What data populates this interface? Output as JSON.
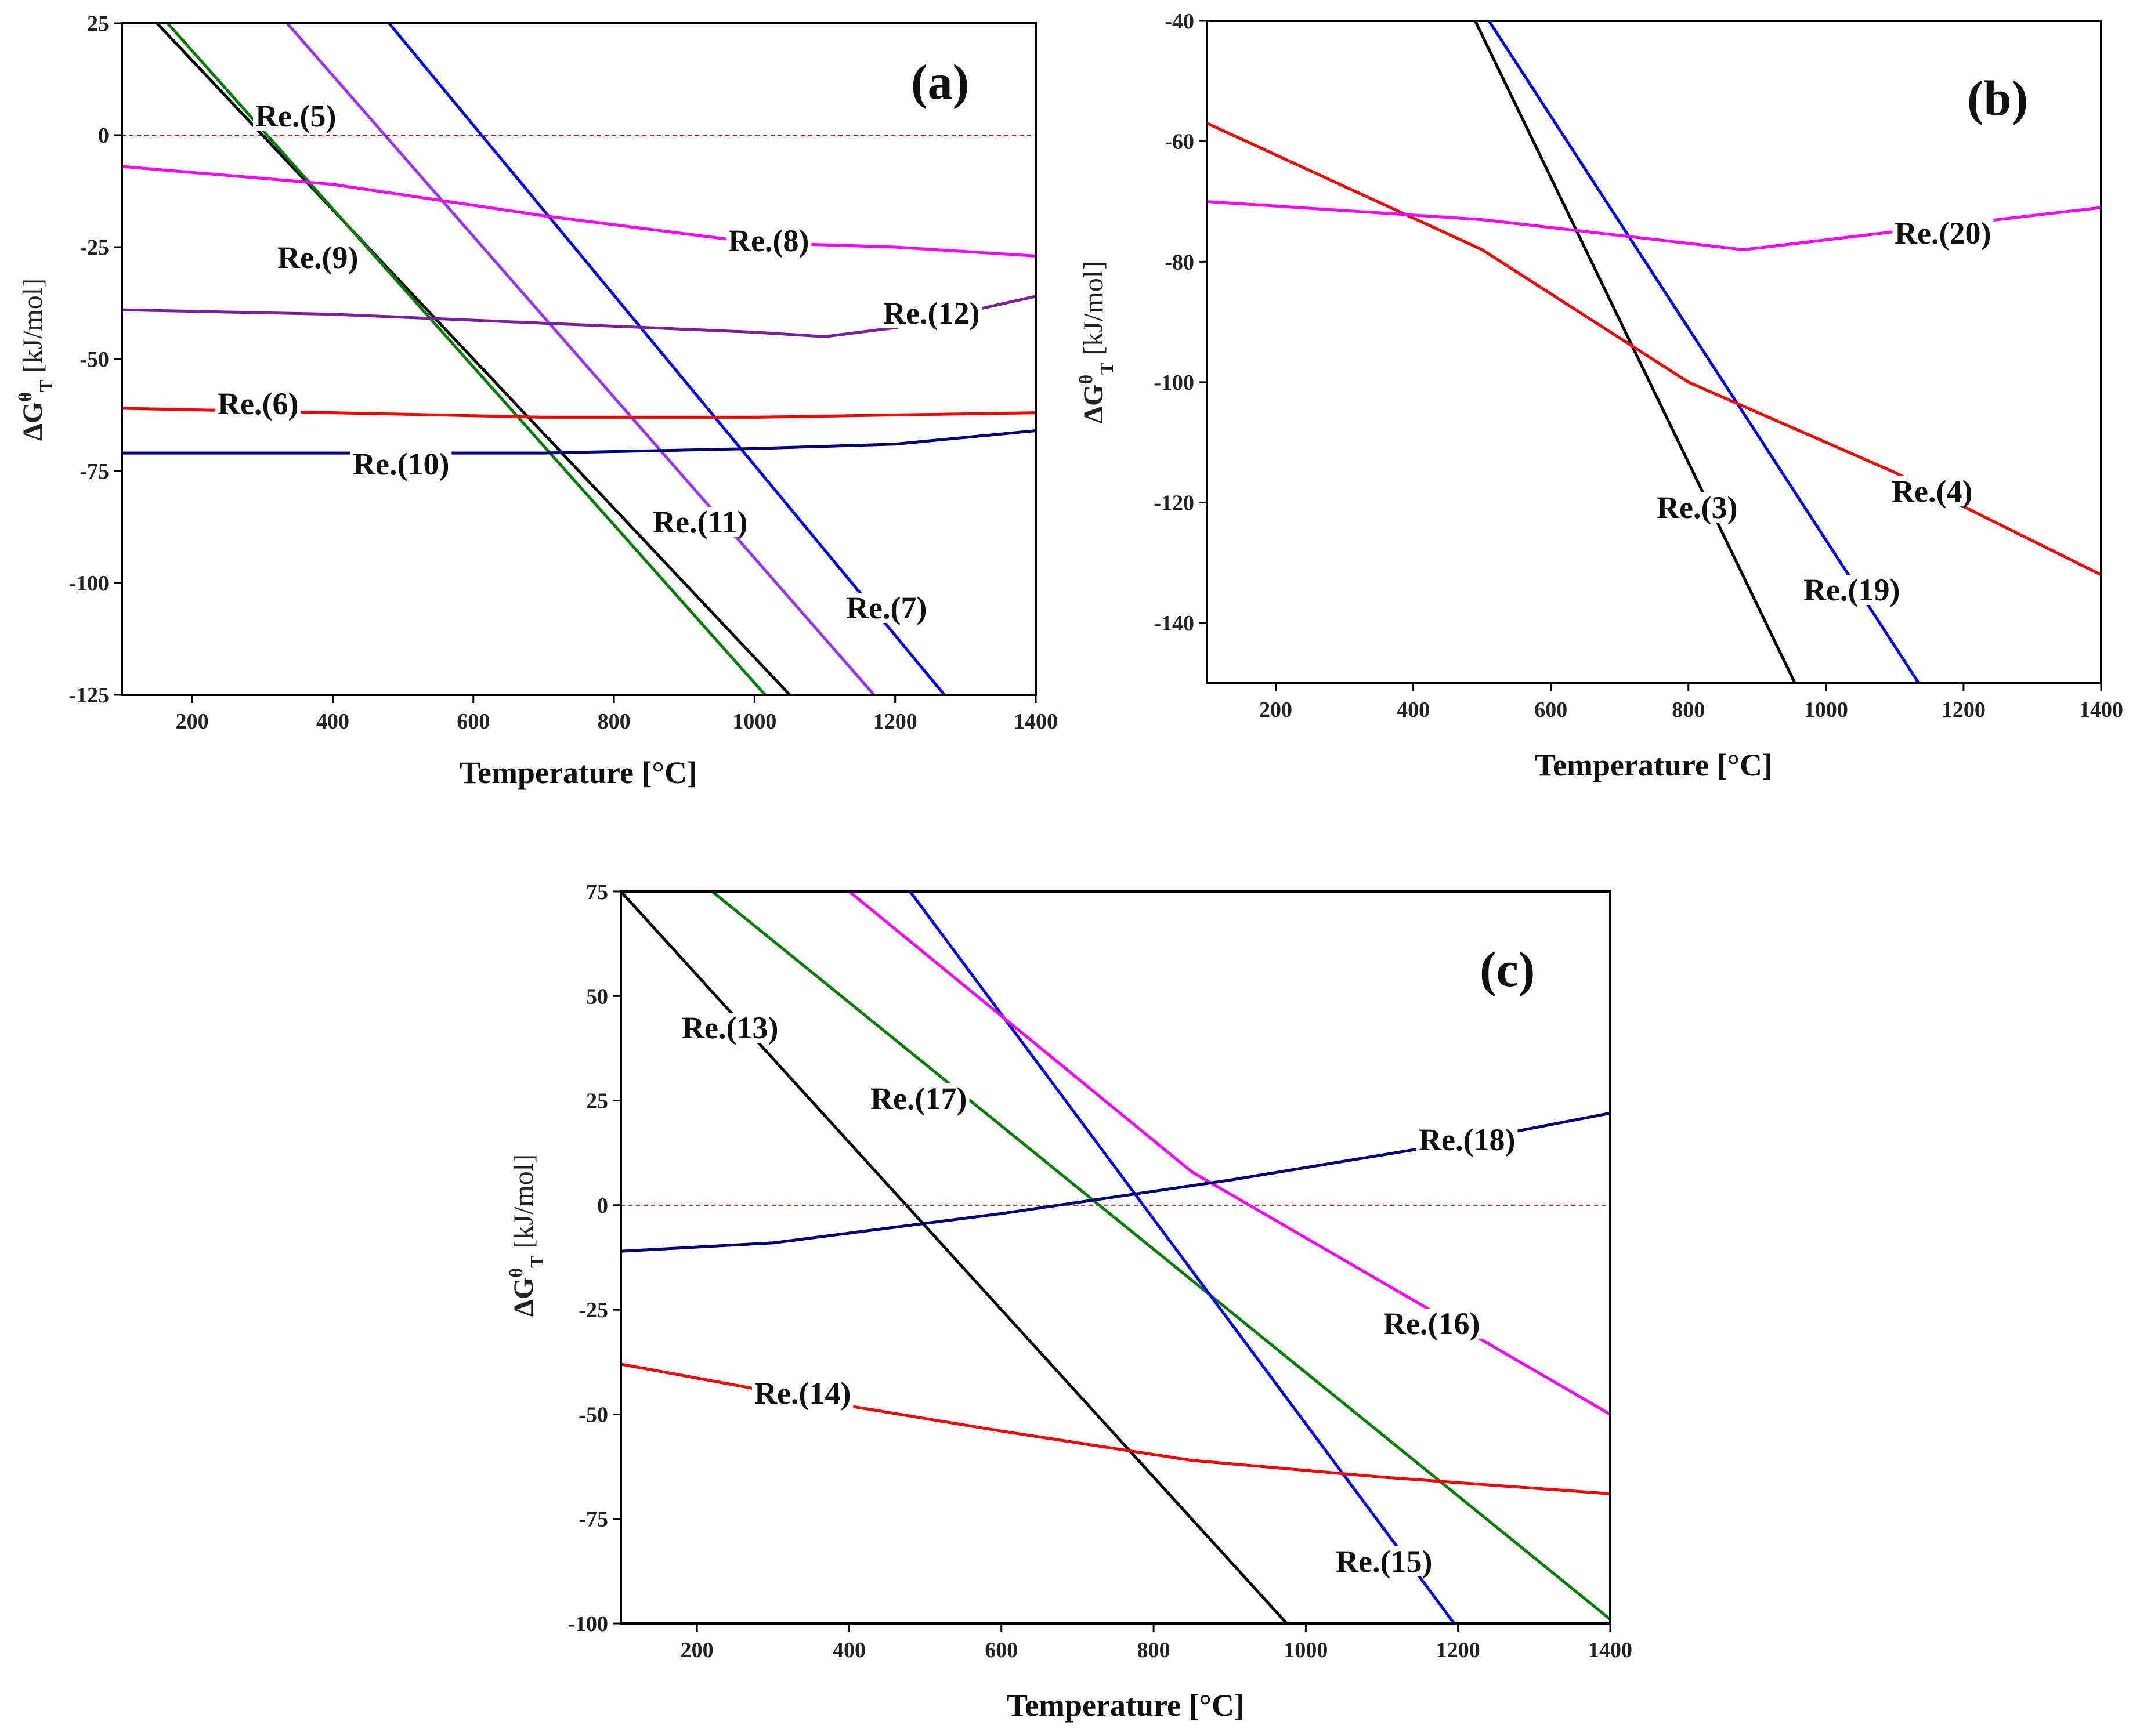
{
  "chart_data": [
    {
      "type": "line",
      "panel": "(a)",
      "xlabel": "Temperature [°C]",
      "ylabel": "ΔG_T^θ [kJ/mol]",
      "ylabel_main": "ΔG",
      "ylabel_sup": "θ",
      "ylabel_sub": "T",
      "ylabel_unit": "[kJ/mol]",
      "xlim": [
        100,
        1400
      ],
      "ylim": [
        -125,
        25
      ],
      "xticks": [
        200,
        400,
        600,
        800,
        1000,
        1200,
        1400
      ],
      "yticks": [
        25,
        0,
        -25,
        -50,
        -75,
        -100,
        -125
      ],
      "zero_line": true,
      "series": [
        {
          "name": "Re.(5)",
          "color": "#000000",
          "x": [
            150,
            1050
          ],
          "y": [
            25,
            -125
          ]
        },
        {
          "name": "Re.(9)",
          "color": "#008000",
          "x": [
            165,
            1015
          ],
          "y": [
            25,
            -125
          ]
        },
        {
          "name": "Re.(11)",
          "color": "#9b30ff",
          "x": [
            335,
            1170
          ],
          "y": [
            25,
            -125
          ]
        },
        {
          "name": "Re.(7)",
          "color": "#0000ff",
          "x": [
            480,
            1270
          ],
          "y": [
            25,
            -125
          ]
        },
        {
          "name": "Re.(8)",
          "color": "#ff00ff",
          "x": [
            100,
            400,
            700,
            1000,
            1200,
            1400
          ],
          "y": [
            -7,
            -11,
            -18,
            -24,
            -25,
            -27
          ]
        },
        {
          "name": "Re.(12)",
          "color": "#7b1fa2",
          "x": [
            100,
            400,
            700,
            1000,
            1100,
            1200,
            1400
          ],
          "y": [
            -39,
            -40,
            -42,
            -44,
            -45,
            -43,
            -36
          ]
        },
        {
          "name": "Re.(6)",
          "color": "#ff0000",
          "x": [
            100,
            400,
            700,
            1000,
            1400
          ],
          "y": [
            -61,
            -62,
            -63,
            -63,
            -62
          ]
        },
        {
          "name": "Re.(10)",
          "color": "#000080",
          "x": [
            100,
            400,
            700,
            1000,
            1200,
            1400
          ],
          "y": [
            -71,
            -71,
            -71,
            -70,
            -69,
            -66
          ]
        }
      ],
      "labels": [
        "(a)",
        "Re.(5)",
        "Re.(9)",
        "Re.(8)",
        "Re.(12)",
        "Re.(6)",
        "Re.(10)",
        "Re.(11)",
        "Re.(7)"
      ]
    },
    {
      "type": "line",
      "panel": "(b)",
      "xlabel": "Temperature [°C]",
      "ylabel": "ΔG_T^θ [kJ/mol]",
      "ylabel_main": "ΔG",
      "ylabel_sup": "θ",
      "ylabel_sub": "T",
      "ylabel_unit": "[kJ/mol]",
      "xlim": [
        100,
        1400
      ],
      "ylim": [
        -150,
        -40
      ],
      "xticks": [
        200,
        400,
        600,
        800,
        1000,
        1200,
        1400
      ],
      "yticks": [
        -40,
        -60,
        -80,
        -100,
        -120,
        -140
      ],
      "zero_line": false,
      "series": [
        {
          "name": "Re.(3)",
          "color": "#000000",
          "x": [
            490,
            955
          ],
          "y": [
            -40,
            -150
          ]
        },
        {
          "name": "Re.(19)",
          "color": "#0000ff",
          "x": [
            510,
            1135
          ],
          "y": [
            -40,
            -150
          ]
        },
        {
          "name": "Re.(4)",
          "color": "#ff0000",
          "x": [
            100,
            500,
            800,
            1100,
            1400
          ],
          "y": [
            -57,
            -78,
            -100,
            -115,
            -132
          ]
        },
        {
          "name": "Re.(20)",
          "color": "#ff00ff",
          "x": [
            100,
            500,
            880,
            1100,
            1400
          ],
          "y": [
            -70,
            -73,
            -78,
            -75,
            -71
          ]
        }
      ],
      "labels": [
        "(b)",
        "Re.(20)",
        "Re.(4)",
        "Re.(3)",
        "Re.(19)"
      ]
    },
    {
      "type": "line",
      "panel": "(c)",
      "xlabel": "Temperature [°C]",
      "ylabel": "ΔG_T^θ [kJ/mol]",
      "ylabel_main": "ΔG",
      "ylabel_sup": "θ",
      "ylabel_sub": "T",
      "ylabel_unit": "[kJ/mol]",
      "xlim": [
        100,
        1400
      ],
      "ylim": [
        -100,
        75
      ],
      "xticks": [
        200,
        400,
        600,
        800,
        1000,
        1200,
        1400
      ],
      "yticks": [
        75,
        50,
        25,
        0,
        -25,
        -50,
        -75,
        -100
      ],
      "zero_line": true,
      "series": [
        {
          "name": "Re.(13)",
          "color": "#000000",
          "x": [
            100,
            975
          ],
          "y": [
            75,
            -100
          ]
        },
        {
          "name": "Re.(17)",
          "color": "#008000",
          "x": [
            220,
            1400
          ],
          "y": [
            75,
            -99
          ]
        },
        {
          "name": "Re.(15)",
          "color": "#0000ff",
          "x": [
            480,
            1195
          ],
          "y": [
            75,
            -100
          ]
        },
        {
          "name": "Re.(16)",
          "color": "#ff00ff",
          "x": [
            400,
            850,
            1400
          ],
          "y": [
            75,
            8,
            -50
          ]
        },
        {
          "name": "Re.(18)",
          "color": "#000080",
          "x": [
            100,
            300,
            600,
            900,
            1200,
            1400
          ],
          "y": [
            -11,
            -9,
            -2,
            6,
            15,
            22
          ]
        },
        {
          "name": "Re.(14)",
          "color": "#ff0000",
          "x": [
            100,
            400,
            600,
            850,
            1100,
            1400
          ],
          "y": [
            -38,
            -48,
            -54,
            -61,
            -65,
            -69
          ]
        }
      ],
      "labels": [
        "(c)",
        "Re.(13)",
        "Re.(17)",
        "Re.(18)",
        "Re.(16)",
        "Re.(14)",
        "Re.(15)"
      ]
    }
  ]
}
